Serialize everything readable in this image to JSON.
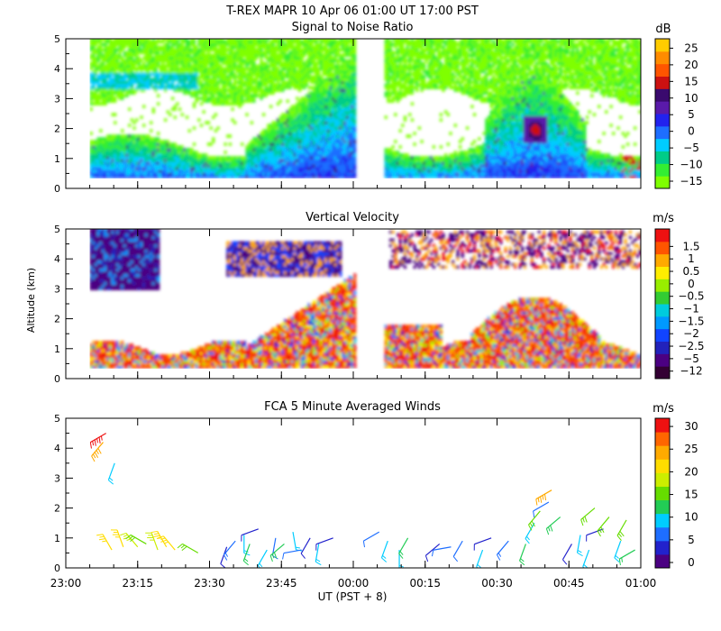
{
  "header": {
    "title": "T-REX   MAPR 10 Apr 06   01:00 UT   17:00   PST"
  },
  "x_axis": {
    "label": "UT  (PST + 8)",
    "ticks": [
      "23:00",
      "23:15",
      "23:30",
      "23:45",
      "00:00",
      "00:15",
      "00:30",
      "00:45",
      "01:00"
    ]
  },
  "y_axis_label": "Altitude (km)",
  "colors": {
    "snr": [
      "#7fff00",
      "#33ee33",
      "#00cc88",
      "#00ccff",
      "#1e6eff",
      "#2222ee",
      "#5a1aaa",
      "#3a0a6e",
      "#cc1111",
      "#ff5500",
      "#ff8c00",
      "#ffcc00"
    ],
    "vel": [
      "#330033",
      "#4b0082",
      "#2222bb",
      "#1144ff",
      "#0099ff",
      "#00ccdd",
      "#33cc33",
      "#99ee00",
      "#ffee00",
      "#ffaa00",
      "#ff5500",
      "#ee1111"
    ],
    "wind": [
      "#4b0082",
      "#2222cc",
      "#1e6eff",
      "#00ccff",
      "#22cc55",
      "#66dd00",
      "#ccee00",
      "#ffdd00",
      "#ffaa00",
      "#ff6600",
      "#ee1111"
    ]
  },
  "chart_data": [
    {
      "type": "heatmap",
      "title": "Signal to Noise Ratio",
      "units": "dB",
      "xlabel": "",
      "ylabel": "",
      "x_range_hours": [
        23.0,
        25.0
      ],
      "ylim": [
        0,
        5
      ],
      "yticks": [
        0,
        1,
        2,
        3,
        4,
        5
      ],
      "data_gaps_hours": [
        [
          23.0,
          23.08
        ],
        [
          24.0,
          24.1
        ]
      ],
      "colorbar": {
        "min": -15,
        "max": 30,
        "tick_values": [
          -15,
          -10,
          -5,
          0,
          5,
          10,
          15,
          20,
          25
        ],
        "tick_labels": [
          "−15",
          "−10",
          "−5",
          "0",
          "5",
          "10",
          "15",
          "20",
          "25"
        ]
      }
    },
    {
      "type": "heatmap",
      "title": "Vertical Velocity",
      "units": "m/s",
      "xlabel": "",
      "ylabel": "Altitude (km)",
      "x_range_hours": [
        23.0,
        25.0
      ],
      "ylim": [
        0,
        5
      ],
      "yticks": [
        0,
        1,
        2,
        3,
        4,
        5
      ],
      "data_gaps_hours": [
        [
          23.0,
          23.08
        ],
        [
          24.0,
          24.1
        ]
      ],
      "colorbar": {
        "labels": [
          "−12",
          "−5",
          "−2.5",
          "−2",
          "−1.5",
          "−1",
          "−0.5",
          "0",
          "0.5",
          "1",
          "1.5"
        ]
      }
    },
    {
      "type": "scatter",
      "title": "FCA 5 Minute Averaged Winds",
      "units": "m/s",
      "xlabel": "UT  (PST + 8)",
      "ylabel": "",
      "x_range_hours": [
        23.0,
        25.0
      ],
      "ylim": [
        0,
        5
      ],
      "yticks": [
        0,
        1,
        2,
        3,
        4,
        5
      ],
      "colorbar": {
        "min": 0,
        "max": 33,
        "tick_values": [
          0,
          5,
          10,
          15,
          20,
          25,
          30
        ],
        "tick_labels": [
          "0",
          "5",
          "10",
          "15",
          "20",
          "25",
          "30"
        ]
      },
      "barbs": [
        {
          "t": 23.14,
          "z": 4.5,
          "speed": 31,
          "dir": 240
        },
        {
          "t": 23.13,
          "z": 4.2,
          "speed": 25,
          "dir": 220
        },
        {
          "t": 23.17,
          "z": 3.5,
          "speed": 11,
          "dir": 200
        },
        {
          "t": 23.16,
          "z": 0.6,
          "speed": 21,
          "dir": 330
        },
        {
          "t": 23.2,
          "z": 0.7,
          "speed": 21,
          "dir": 340
        },
        {
          "t": 23.25,
          "z": 0.7,
          "speed": 18,
          "dir": 320
        },
        {
          "t": 23.28,
          "z": 0.8,
          "speed": 15,
          "dir": 300
        },
        {
          "t": 23.32,
          "z": 0.6,
          "speed": 20,
          "dir": 340
        },
        {
          "t": 23.35,
          "z": 0.7,
          "speed": 22,
          "dir": 330
        },
        {
          "t": 23.38,
          "z": 0.6,
          "speed": 21,
          "dir": 320
        },
        {
          "t": 23.46,
          "z": 0.5,
          "speed": 16,
          "dir": 300
        },
        {
          "t": 23.56,
          "z": 0.7,
          "speed": 5,
          "dir": 200
        },
        {
          "t": 23.59,
          "z": 0.9,
          "speed": 8,
          "dir": 220
        },
        {
          "t": 23.62,
          "z": 1.1,
          "speed": 10,
          "dir": 180
        },
        {
          "t": 23.64,
          "z": 0.8,
          "speed": 12,
          "dir": 200
        },
        {
          "t": 23.67,
          "z": 1.3,
          "speed": 4,
          "dir": 250
        },
        {
          "t": 23.7,
          "z": 0.6,
          "speed": 11,
          "dir": 210
        },
        {
          "t": 23.73,
          "z": 1.0,
          "speed": 7,
          "dir": 190
        },
        {
          "t": 23.76,
          "z": 0.8,
          "speed": 14,
          "dir": 230
        },
        {
          "t": 23.79,
          "z": 1.2,
          "speed": 9,
          "dir": 170
        },
        {
          "t": 23.82,
          "z": 0.6,
          "speed": 6,
          "dir": 260
        },
        {
          "t": 23.85,
          "z": 1.0,
          "speed": 5,
          "dir": 210
        },
        {
          "t": 23.88,
          "z": 0.8,
          "speed": 10,
          "dir": 190
        },
        {
          "t": 23.93,
          "z": 1.0,
          "speed": 4,
          "dir": 250
        },
        {
          "t": 24.09,
          "z": 1.2,
          "speed": 6,
          "dir": 240
        },
        {
          "t": 24.12,
          "z": 0.9,
          "speed": 9,
          "dir": 200
        },
        {
          "t": 24.16,
          "z": 0.6,
          "speed": 11,
          "dir": 180
        },
        {
          "t": 24.19,
          "z": 1.0,
          "speed": 12,
          "dir": 210
        },
        {
          "t": 24.3,
          "z": 0.8,
          "speed": 4,
          "dir": 230
        },
        {
          "t": 24.34,
          "z": 0.7,
          "speed": 6,
          "dir": 260
        },
        {
          "t": 24.38,
          "z": 0.9,
          "speed": 7,
          "dir": 210
        },
        {
          "t": 24.45,
          "z": 0.6,
          "speed": 10,
          "dir": 200
        },
        {
          "t": 24.48,
          "z": 1.0,
          "speed": 5,
          "dir": 250
        },
        {
          "t": 24.54,
          "z": 0.9,
          "speed": 8,
          "dir": 220
        },
        {
          "t": 24.6,
          "z": 0.8,
          "speed": 12,
          "dir": 200
        },
        {
          "t": 24.63,
          "z": 1.5,
          "speed": 9,
          "dir": 210
        },
        {
          "t": 24.65,
          "z": 1.9,
          "speed": 16,
          "dir": 220
        },
        {
          "t": 24.68,
          "z": 2.2,
          "speed": 6,
          "dir": 240
        },
        {
          "t": 24.69,
          "z": 2.6,
          "speed": 25,
          "dir": 240
        },
        {
          "t": 24.72,
          "z": 1.7,
          "speed": 14,
          "dir": 230
        },
        {
          "t": 24.76,
          "z": 0.8,
          "speed": 5,
          "dir": 210
        },
        {
          "t": 24.79,
          "z": 1.1,
          "speed": 11,
          "dir": 190
        },
        {
          "t": 24.82,
          "z": 0.6,
          "speed": 9,
          "dir": 200
        },
        {
          "t": 24.84,
          "z": 2.0,
          "speed": 15,
          "dir": 230
        },
        {
          "t": 24.87,
          "z": 1.3,
          "speed": 4,
          "dir": 250
        },
        {
          "t": 24.89,
          "z": 1.7,
          "speed": 16,
          "dir": 220
        },
        {
          "t": 24.93,
          "z": 0.9,
          "speed": 10,
          "dir": 200
        },
        {
          "t": 24.95,
          "z": 1.6,
          "speed": 15,
          "dir": 210
        },
        {
          "t": 24.98,
          "z": 0.6,
          "speed": 12,
          "dir": 240
        }
      ]
    }
  ]
}
